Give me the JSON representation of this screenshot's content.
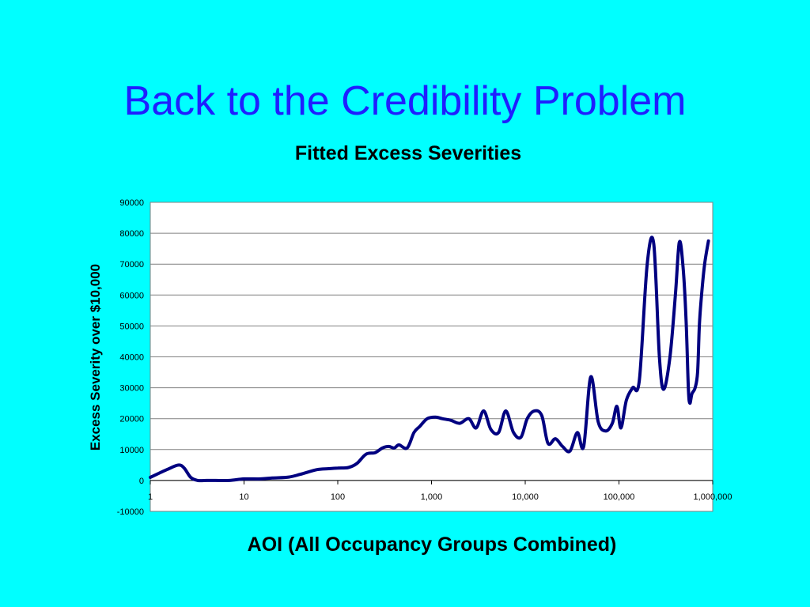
{
  "slide": {
    "title": "Back to the Credibility Problem"
  },
  "colors": {
    "background": "#00FFFF",
    "title": "#1F1FFF",
    "series": "#000080",
    "plot_area": "#FFFFFF",
    "grid": "#808080"
  },
  "chart_data": {
    "type": "line",
    "title": "Fitted Excess Severities",
    "xlabel": "AOI (All Occupancy Groups Combined)",
    "ylabel": "Excess Severity over $10,000",
    "x_scale": "log",
    "xlim": [
      1,
      1000000
    ],
    "ylim": [
      -10000,
      90000
    ],
    "y_ticks": [
      -10000,
      0,
      10000,
      20000,
      30000,
      40000,
      50000,
      60000,
      70000,
      80000,
      90000
    ],
    "y_tick_labels": [
      "-10000",
      "0",
      "10000",
      "20000",
      "30000",
      "40000",
      "50000",
      "60000",
      "70000",
      "80000",
      "90000"
    ],
    "x_ticks": [
      1,
      10,
      100,
      1000,
      10000,
      100000,
      1000000
    ],
    "x_tick_labels": [
      "1",
      "10",
      "100",
      "1,000",
      "10,000",
      "100,000",
      "1,000,000"
    ],
    "grid": "horizontal",
    "legend": "none",
    "series": [
      {
        "x": [
          1,
          1.5,
          2,
          2.3,
          2.7,
          3.2,
          4,
          5,
          7,
          10,
          15,
          20,
          30,
          40,
          60,
          80,
          100,
          130,
          160,
          200,
          250,
          300,
          350,
          400,
          450,
          550,
          650,
          750,
          900,
          1100,
          1300,
          1600,
          2000,
          2500,
          3000,
          3600,
          4300,
          5200,
          6200,
          7500,
          9000,
          10500,
          12500,
          15000,
          17500,
          21000,
          25000,
          30000,
          36000,
          42000,
          50000,
          60000,
          72000,
          85000,
          95000,
          105000,
          120000,
          140000,
          165000,
          200000,
          235000,
          270000,
          300000,
          350000,
          400000,
          440000,
          480000,
          520000,
          550000,
          570000,
          600000,
          650000,
          690000,
          720000,
          760000,
          820000,
          900000
        ],
        "y": [
          1000,
          3500,
          5000,
          4000,
          1000,
          0,
          0,
          0,
          0,
          500,
          500,
          800,
          1100,
          2000,
          3500,
          3800,
          4000,
          4200,
          5500,
          8500,
          9000,
          10500,
          11000,
          10500,
          11500,
          10500,
          15500,
          17500,
          20000,
          20500,
          20000,
          19500,
          18500,
          20000,
          17000,
          22500,
          16500,
          15500,
          22500,
          15500,
          14000,
          20000,
          22500,
          21000,
          12000,
          13500,
          11000,
          9500,
          15500,
          11000,
          33500,
          19000,
          16000,
          18500,
          24000,
          17000,
          26000,
          30000,
          32500,
          70000,
          76500,
          40000,
          29500,
          40000,
          60000,
          77000,
          70000,
          52000,
          30000,
          25000,
          28000,
          30000,
          35000,
          50000,
          60000,
          70000,
          77500
        ]
      }
    ]
  }
}
